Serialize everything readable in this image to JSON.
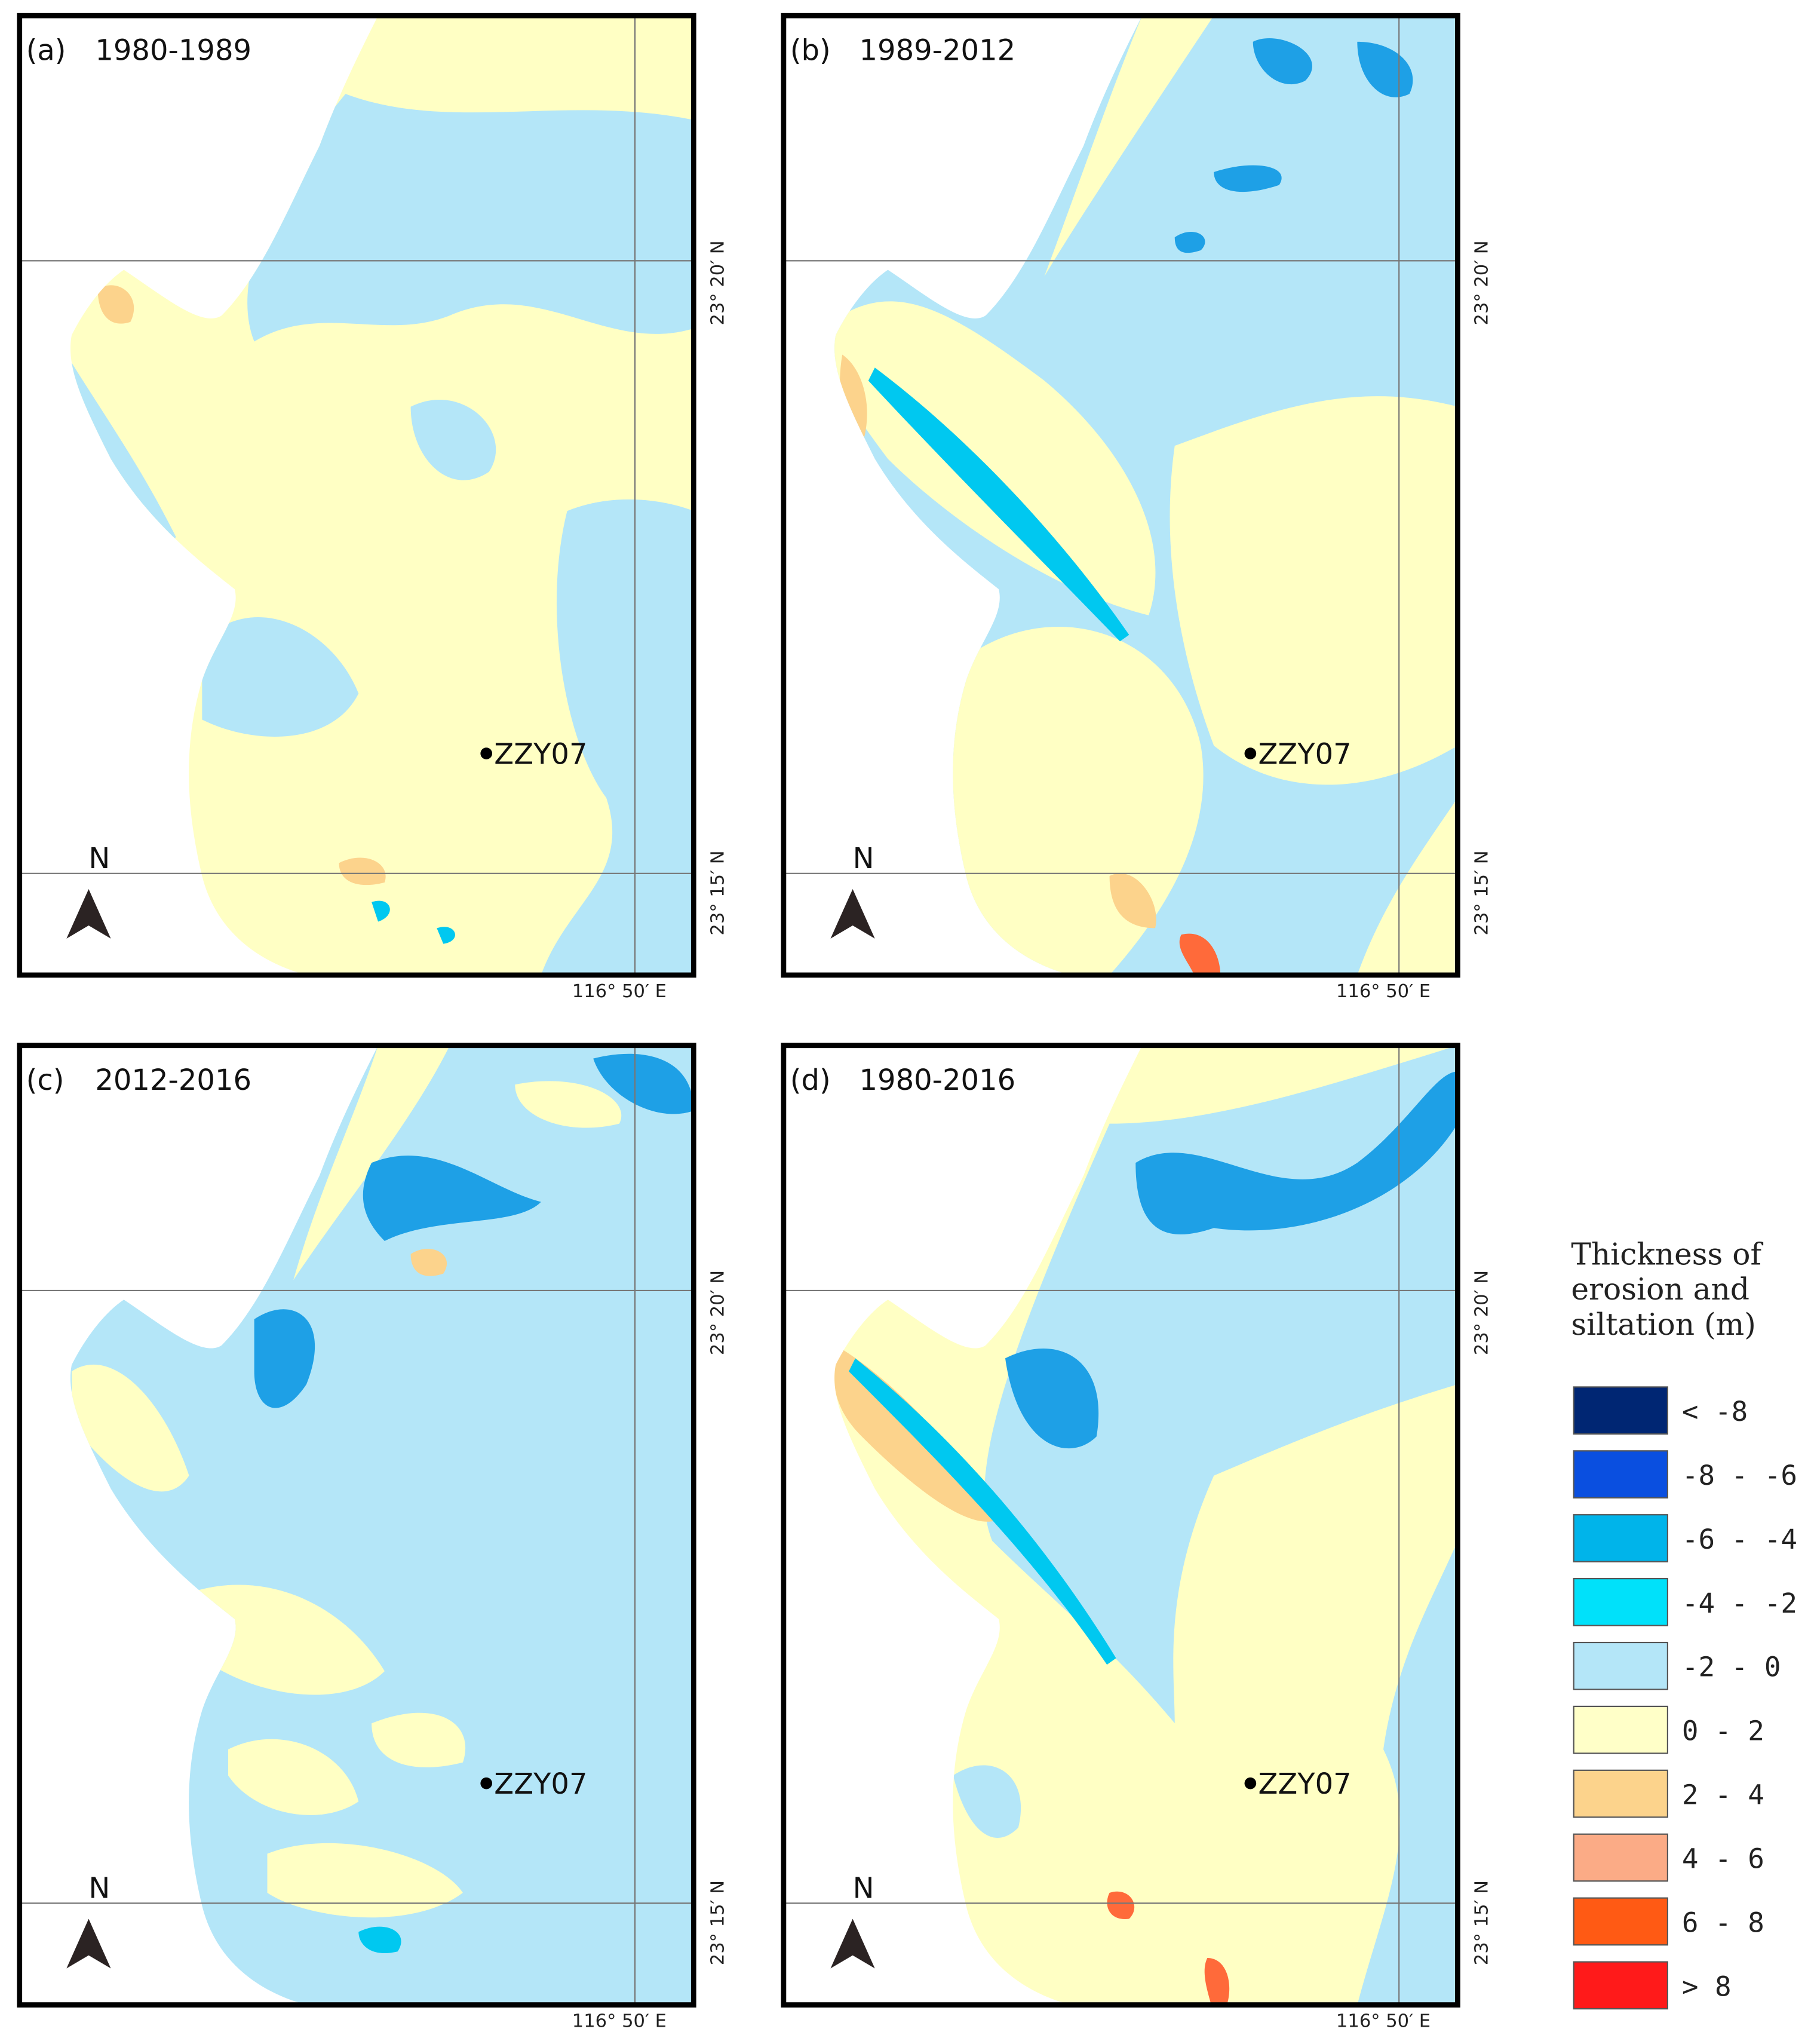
{
  "panels": [
    {
      "label": "(a)",
      "period": "1980-1989"
    },
    {
      "label": "(b)",
      "period": "1989-2012"
    },
    {
      "label": "(c)",
      "period": "2012-2016"
    },
    {
      "label": "(d)",
      "period": "1980-2016"
    }
  ],
  "station": "ZZY07",
  "north": "N",
  "lat_labels": [
    "23° 20′ N",
    "23° 15′ N"
  ],
  "lon_label": "116° 50′ E",
  "legend": {
    "title": [
      "Thickness of",
      "erosion and",
      "siltation (m)"
    ],
    "items": [
      {
        "label": "< -8",
        "color": "#002673"
      },
      {
        "label": "-8 - -6",
        "color": "#0a4fe0"
      },
      {
        "label": "-6 - -4",
        "color": "#00b4ea"
      },
      {
        "label": "-4 - -2",
        "color": "#00e1fa"
      },
      {
        "label": "-2 - 0",
        "color": "#b4e6f8"
      },
      {
        "label": "0 - 2",
        "color": "#ffffc8"
      },
      {
        "label": "2 - 4",
        "color": "#fcd38c"
      },
      {
        "label": "4 - 6",
        "color": "#fbab86"
      },
      {
        "label": "6 - 8",
        "color": "#ff5a14"
      },
      {
        "label": "> 8",
        "color": "#ff1a1a"
      }
    ]
  }
}
